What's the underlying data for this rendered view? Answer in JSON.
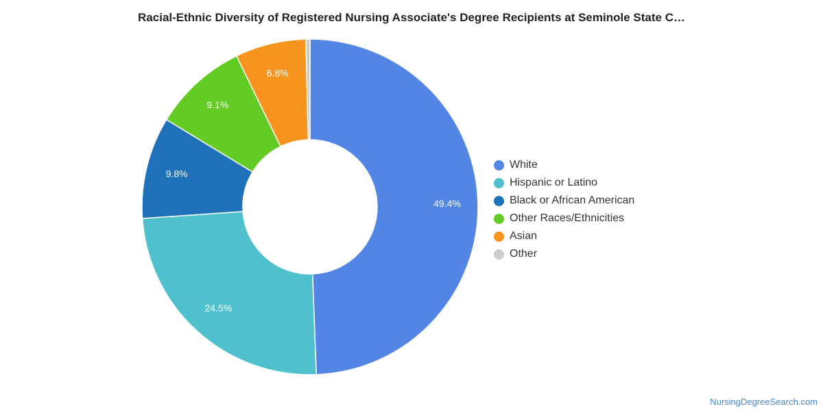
{
  "chart_data": {
    "type": "pie",
    "title": "Racial-Ethnic Diversity of Registered Nursing Associate's Degree Recipients at Seminole State C…",
    "categories": [
      "White",
      "Hispanic or Latino",
      "Black or African American",
      "Other Races/Ethnicities",
      "Asian",
      "Other"
    ],
    "values": [
      49.4,
      24.5,
      9.8,
      9.1,
      6.8,
      0.4
    ],
    "labels": [
      "49.4%",
      "24.5%",
      "9.8%",
      "9.1%",
      "6.8%",
      ""
    ],
    "colors": [
      "#5386e4",
      "#4fc1cc",
      "#1f72b9",
      "#62cb24",
      "#f7941d",
      "#cccccc"
    ],
    "legend_position": "right"
  },
  "footer": {
    "credit": "NursingDegreeSearch.com"
  }
}
